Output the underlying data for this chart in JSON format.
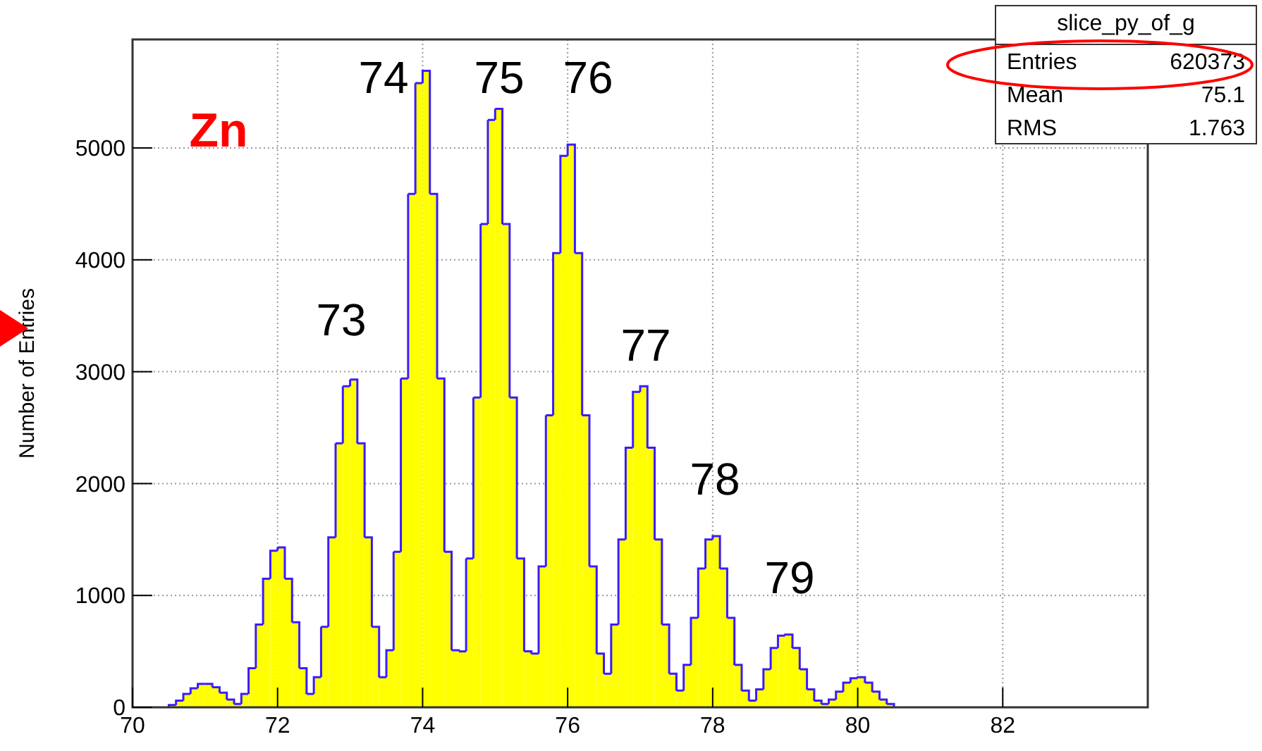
{
  "chart_data": {
    "type": "histogram",
    "title": "slice_py_of_g",
    "ylabel": "Number of Entries",
    "color": "#ffff00",
    "bins": [
      70.5,
      70.6,
      70.7,
      70.8,
      70.9,
      71,
      71.1,
      71.2,
      71.3,
      71.4,
      71.5,
      71.6,
      71.7,
      71.8,
      71.9,
      72,
      72.1,
      72.2,
      72.3,
      72.4,
      72.5,
      72.6,
      72.7,
      72.8,
      72.9,
      73,
      73.1,
      73.2,
      73.3,
      73.4,
      73.5,
      73.6,
      73.7,
      73.8,
      73.9,
      74,
      74.1,
      74.2,
      74.3,
      74.4,
      74.5,
      74.6,
      74.7,
      74.8,
      74.9,
      75,
      75.1,
      75.2,
      75.3,
      75.4,
      75.5,
      75.6,
      75.7,
      75.8,
      75.9,
      76,
      76.1,
      76.2,
      76.3,
      76.4,
      76.5,
      76.6,
      76.7,
      76.8,
      76.9,
      77,
      77.1,
      77.2,
      77.3,
      77.4,
      77.5,
      77.6,
      77.7,
      77.8,
      77.9,
      78,
      78.1,
      78.2,
      78.3,
      78.4,
      78.5,
      78.6,
      78.7,
      78.8,
      78.9,
      79,
      79.1,
      79.2,
      79.3,
      79.4,
      79.5,
      79.6,
      79.7,
      79.8,
      79.9,
      80,
      80.1,
      80.2,
      80.3,
      80.4,
      80.5
    ],
    "values": [
      20,
      60,
      120,
      170,
      210,
      210,
      180,
      130,
      70,
      30,
      120,
      350,
      740,
      1150,
      1400,
      1430,
      1150,
      760,
      350,
      120,
      270,
      720,
      1520,
      2360,
      2870,
      2930,
      2360,
      1520,
      720,
      270,
      510,
      1390,
      2940,
      4590,
      5580,
      5690,
      4590,
      2940,
      1390,
      510,
      500,
      1330,
      2770,
      4320,
      5250,
      5350,
      4320,
      2770,
      1330,
      500,
      480,
      1260,
      2610,
      4060,
      4930,
      5030,
      4060,
      2610,
      1260,
      480,
      300,
      740,
      1500,
      2320,
      2820,
      2870,
      2320,
      1500,
      740,
      300,
      150,
      380,
      800,
      1240,
      1500,
      1530,
      1240,
      800,
      380,
      150,
      60,
      160,
      340,
      530,
      640,
      650,
      530,
      340,
      160,
      60,
      30,
      70,
      140,
      220,
      260,
      270,
      220,
      140,
      70,
      30
    ],
    "xlim": [
      70,
      84
    ],
    "xticks": [
      70,
      72,
      74,
      76,
      78,
      80,
      82
    ],
    "ylim": [
      0,
      5970
    ],
    "yticks": [
      0,
      1000,
      2000,
      3000,
      4000,
      5000
    ],
    "grid": true,
    "annotations": [
      "Zn",
      "73",
      "74",
      "75",
      "76",
      "77",
      "78",
      "79",
      "Entries",
      "620373",
      "Mean",
      "75.1",
      "RMS",
      "1.763"
    ]
  }
}
